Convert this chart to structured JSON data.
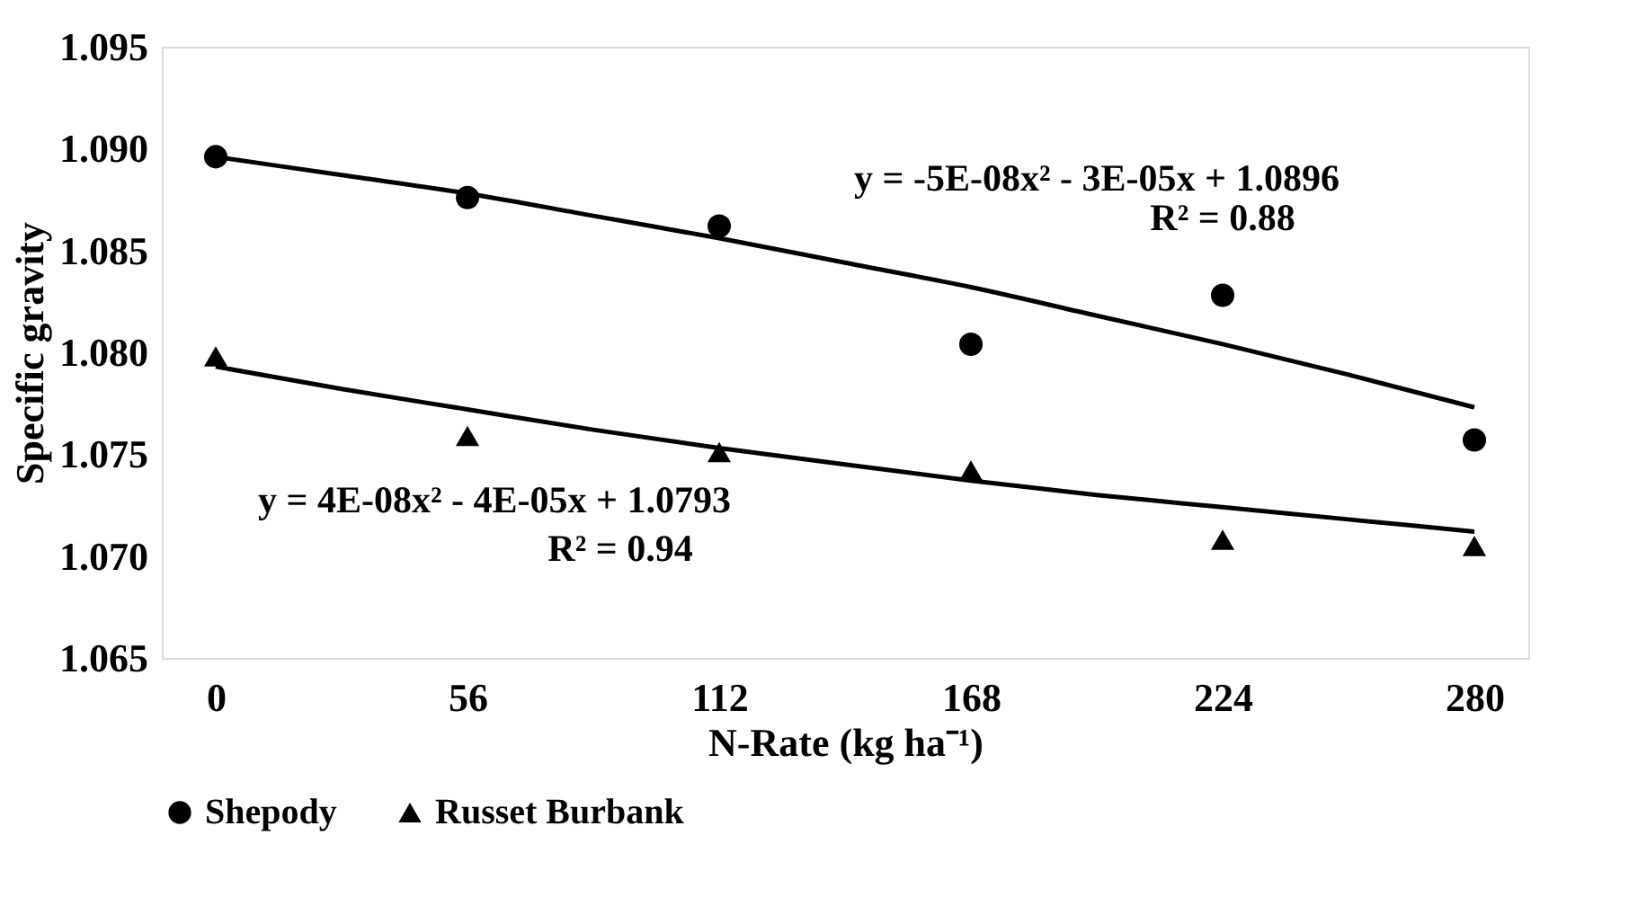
{
  "chart_data": {
    "type": "scatter",
    "xlabel": "N-Rate (kg ha⁻¹)",
    "ylabel": "Specific gravity",
    "x": [
      0,
      56,
      112,
      168,
      224,
      280
    ],
    "xlim": [
      -12,
      292
    ],
    "xticks": [
      0,
      56,
      112,
      168,
      224,
      280
    ],
    "ylim": [
      1.065,
      1.095
    ],
    "yticks": [
      1.065,
      {
        "value": 1.07,
        "label": "1.070"
      },
      1.075,
      {
        "value": 1.08,
        "label": "1.080"
      },
      1.085,
      {
        "value": 1.09,
        "label": "1.090"
      },
      1.095
    ],
    "grid": false,
    "legend": "bottom",
    "series": [
      {
        "name": "Shepody",
        "type": "scatter",
        "marker": "circle",
        "color": "#000000",
        "values": [
          1.0896,
          1.0876,
          1.0862,
          1.0804,
          1.0828,
          1.0757
        ]
      },
      {
        "name": "Russet Burbank",
        "type": "scatter",
        "marker": "triangle",
        "color": "#000000",
        "values": [
          1.0798,
          1.0759,
          1.0751,
          1.0742,
          1.0708,
          1.0705
        ]
      },
      {
        "type": "line",
        "marker": "none",
        "line_style": "solid",
        "color": "#000000",
        "x": [
          0,
          28,
          56,
          84,
          112,
          140,
          168,
          196,
          224,
          252,
          280
        ],
        "values": [
          1.0896,
          1.0887,
          1.0878,
          1.0867,
          1.0856,
          1.0844,
          1.0832,
          1.0818,
          1.0804,
          1.0789,
          1.0773
        ]
      },
      {
        "type": "line",
        "marker": "none",
        "line_style": "solid",
        "color": "#000000",
        "x": [
          0,
          28,
          56,
          84,
          112,
          140,
          168,
          196,
          224,
          252,
          280
        ],
        "values": [
          1.0793,
          1.0782,
          1.0772,
          1.0762,
          1.0753,
          1.0745,
          1.0737,
          1.073,
          1.0724,
          1.0718,
          1.0712
        ]
      }
    ],
    "annotations": [
      "y = -5E-08x² - 3E-05x + 1.0896",
      "R² = 0.88",
      "y = 4E-08x² - 4E-05x + 1.0793",
      "R² = 0.94"
    ]
  }
}
